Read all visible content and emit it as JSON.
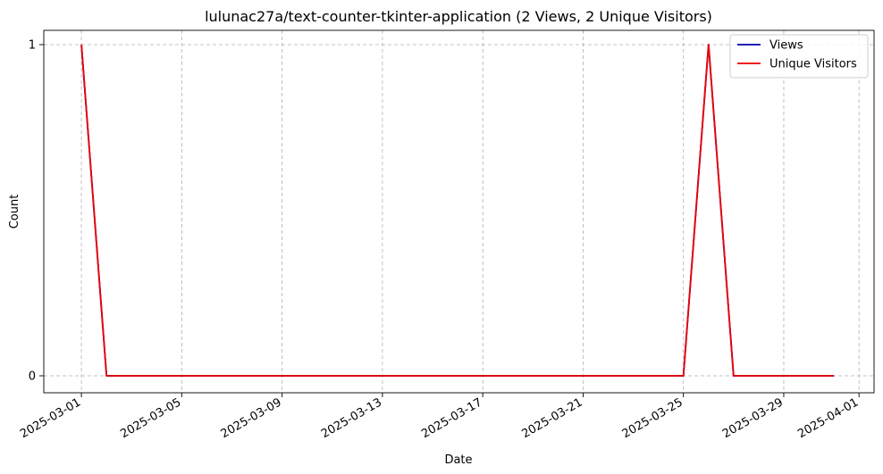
{
  "chart_data": {
    "type": "line",
    "title": "lulunac27a/text-counter-tkinter-application (2 Views, 2 Unique Visitors)",
    "xlabel": "Date",
    "ylabel": "Count",
    "x_type": "date",
    "x_ticks": [
      "2025-03-01",
      "2025-03-05",
      "2025-03-09",
      "2025-03-13",
      "2025-03-17",
      "2025-03-21",
      "2025-03-25",
      "2025-03-29",
      "2025-04-01"
    ],
    "y_ticks": [
      0,
      1
    ],
    "grid": true,
    "legend_position": "top-right",
    "series": [
      {
        "name": "Views",
        "color": "#0000aa",
        "points": [
          [
            "2025-03-01",
            1
          ],
          [
            "2025-03-02",
            0
          ],
          [
            "2025-03-03",
            0
          ],
          [
            "2025-03-04",
            0
          ],
          [
            "2025-03-05",
            0
          ],
          [
            "2025-03-06",
            0
          ],
          [
            "2025-03-07",
            0
          ],
          [
            "2025-03-08",
            0
          ],
          [
            "2025-03-09",
            0
          ],
          [
            "2025-03-10",
            0
          ],
          [
            "2025-03-11",
            0
          ],
          [
            "2025-03-12",
            0
          ],
          [
            "2025-03-13",
            0
          ],
          [
            "2025-03-14",
            0
          ],
          [
            "2025-03-15",
            0
          ],
          [
            "2025-03-16",
            0
          ],
          [
            "2025-03-17",
            0
          ],
          [
            "2025-03-18",
            0
          ],
          [
            "2025-03-19",
            0
          ],
          [
            "2025-03-20",
            0
          ],
          [
            "2025-03-21",
            0
          ],
          [
            "2025-03-22",
            0
          ],
          [
            "2025-03-23",
            0
          ],
          [
            "2025-03-24",
            0
          ],
          [
            "2025-03-25",
            0
          ],
          [
            "2025-03-26",
            1
          ],
          [
            "2025-03-27",
            0
          ],
          [
            "2025-03-28",
            0
          ],
          [
            "2025-03-29",
            0
          ],
          [
            "2025-03-30",
            0
          ],
          [
            "2025-03-31",
            0
          ]
        ]
      },
      {
        "name": "Unique Visitors",
        "color": "#ee0000",
        "points": [
          [
            "2025-03-01",
            1
          ],
          [
            "2025-03-02",
            0
          ],
          [
            "2025-03-03",
            0
          ],
          [
            "2025-03-04",
            0
          ],
          [
            "2025-03-05",
            0
          ],
          [
            "2025-03-06",
            0
          ],
          [
            "2025-03-07",
            0
          ],
          [
            "2025-03-08",
            0
          ],
          [
            "2025-03-09",
            0
          ],
          [
            "2025-03-10",
            0
          ],
          [
            "2025-03-11",
            0
          ],
          [
            "2025-03-12",
            0
          ],
          [
            "2025-03-13",
            0
          ],
          [
            "2025-03-14",
            0
          ],
          [
            "2025-03-15",
            0
          ],
          [
            "2025-03-16",
            0
          ],
          [
            "2025-03-17",
            0
          ],
          [
            "2025-03-18",
            0
          ],
          [
            "2025-03-19",
            0
          ],
          [
            "2025-03-20",
            0
          ],
          [
            "2025-03-21",
            0
          ],
          [
            "2025-03-22",
            0
          ],
          [
            "2025-03-23",
            0
          ],
          [
            "2025-03-24",
            0
          ],
          [
            "2025-03-25",
            0
          ],
          [
            "2025-03-26",
            1
          ],
          [
            "2025-03-27",
            0
          ],
          [
            "2025-03-28",
            0
          ],
          [
            "2025-03-29",
            0
          ],
          [
            "2025-03-30",
            0
          ],
          [
            "2025-03-31",
            0
          ]
        ]
      }
    ]
  }
}
